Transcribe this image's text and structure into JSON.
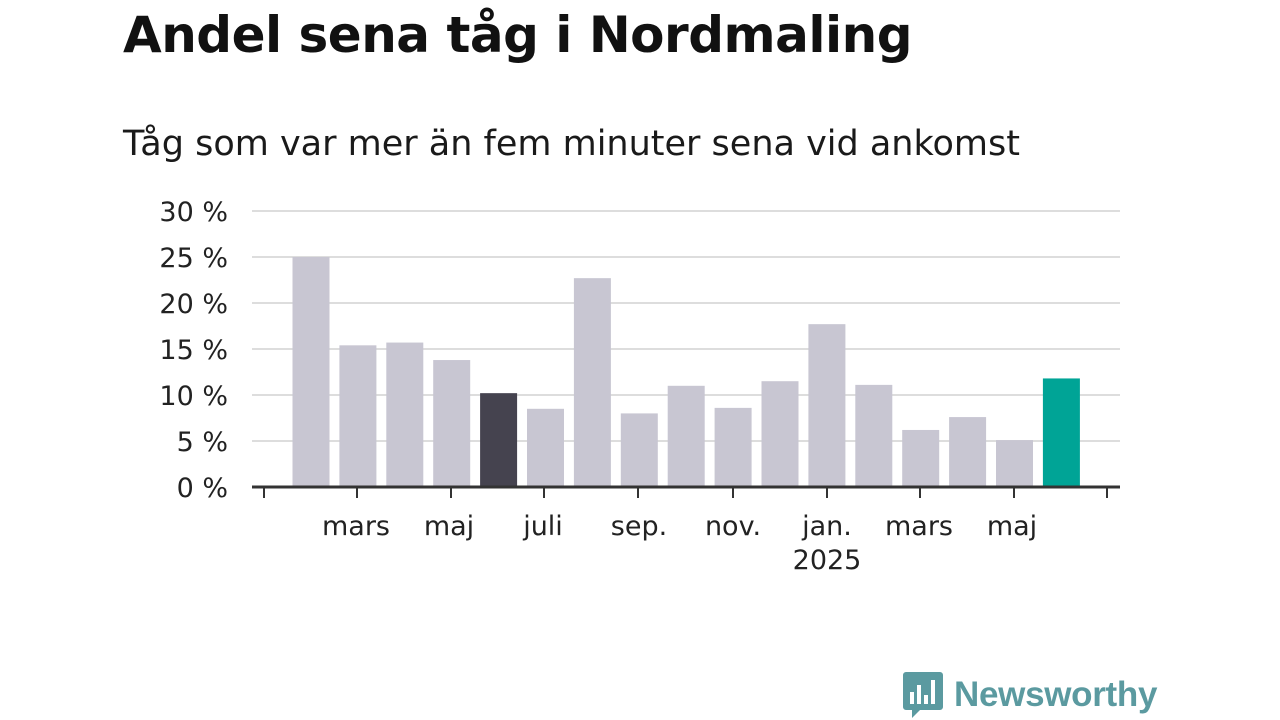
{
  "title": "Andel sena tåg i Nordmaling",
  "subtitle": "Tåg som var mer än fem minuter sena vid ankomst",
  "brand": {
    "name": "Newsworthy",
    "color": "#5b9aa0"
  },
  "colors": {
    "default_bar": "#c8c6d2",
    "highlight_dark": "#45434f",
    "highlight_current": "#00a496",
    "grid": "#dddddd",
    "axis": "#333333"
  },
  "chart_data": {
    "type": "bar",
    "ylim": [
      0,
      30
    ],
    "yticks": [
      0,
      5,
      10,
      15,
      20,
      25,
      30
    ],
    "ytick_suffix": " %",
    "grid": true,
    "x_tick_labels": [
      {
        "label": "mars",
        "year": ""
      },
      {
        "label": "maj",
        "year": ""
      },
      {
        "label": "juli",
        "year": ""
      },
      {
        "label": "sep.",
        "year": ""
      },
      {
        "label": "nov.",
        "year": ""
      },
      {
        "label": "jan.",
        "year": "2025"
      },
      {
        "label": "mars",
        "year": ""
      },
      {
        "label": "maj",
        "year": ""
      }
    ],
    "values": [
      25,
      15.4,
      15.7,
      13.8,
      10.2,
      8.5,
      22.7,
      8.0,
      11.0,
      8.6,
      11.5,
      17.7,
      11.1,
      6.2,
      7.6,
      5.1,
      11.8
    ],
    "highlight": {
      "4": "highlight_dark",
      "16": "highlight_current"
    }
  }
}
